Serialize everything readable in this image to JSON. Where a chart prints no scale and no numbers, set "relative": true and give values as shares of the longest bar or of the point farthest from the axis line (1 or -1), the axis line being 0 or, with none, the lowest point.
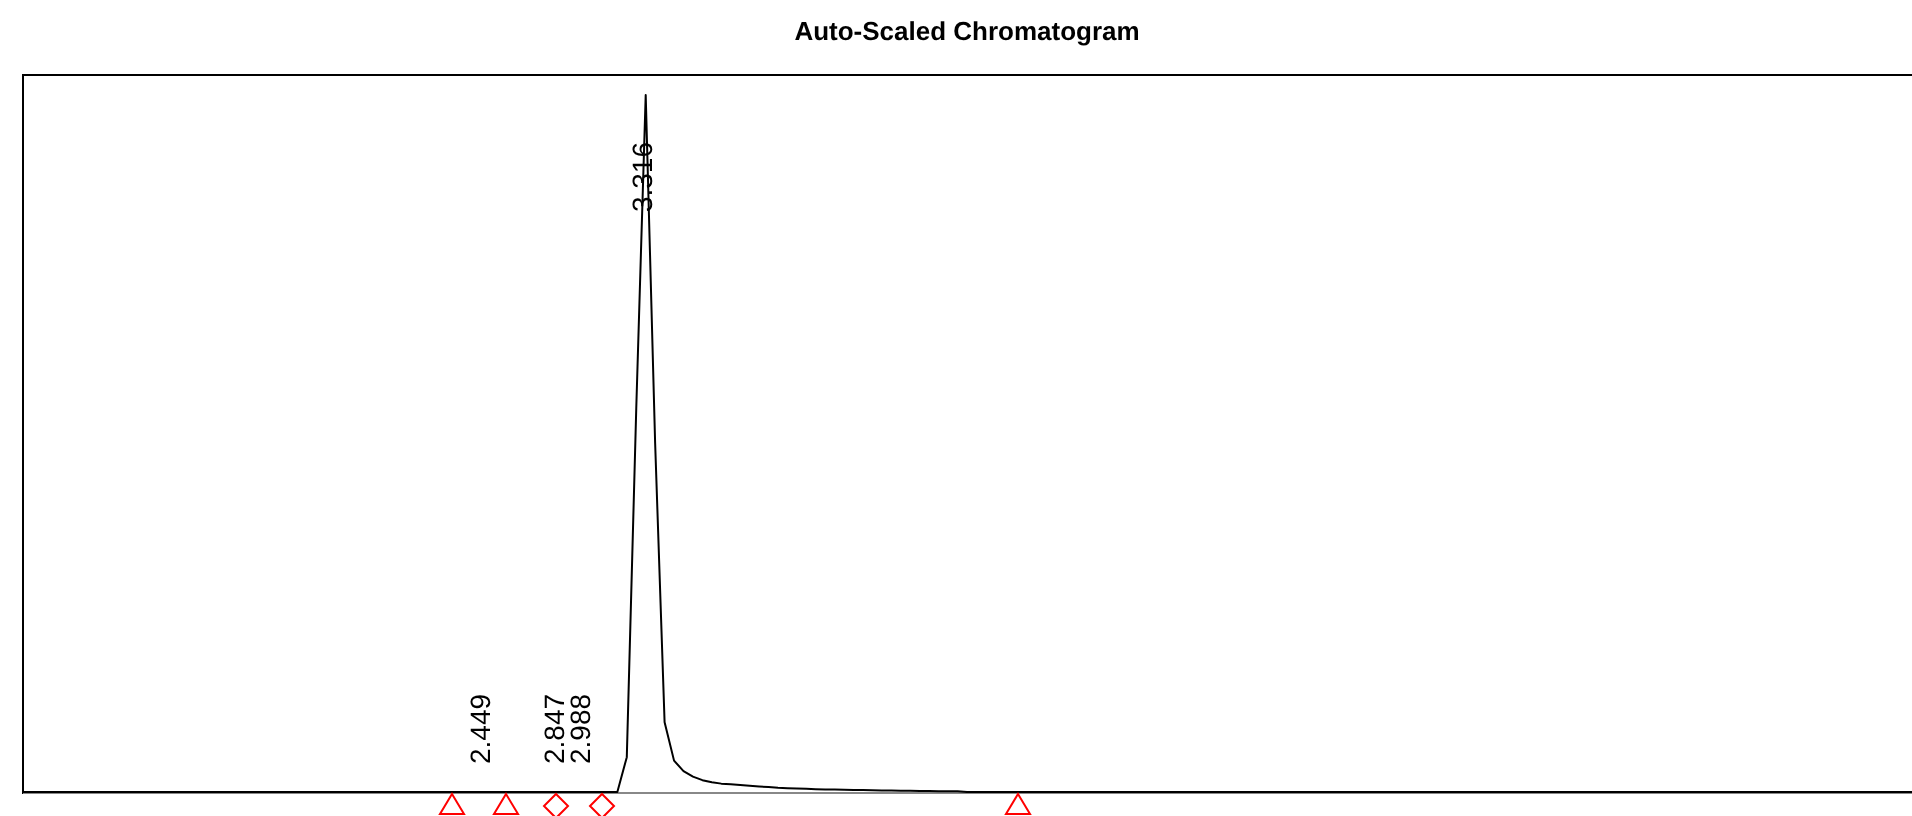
{
  "chart_data": {
    "type": "line",
    "title": "Auto-Scaled Chromatogram",
    "relative": true,
    "categories": [
      null,
      null,
      null,
      null,
      null,
      null,
      null,
      null,
      null,
      null,
      null,
      null,
      null,
      null,
      null,
      null,
      null,
      null,
      null,
      null,
      null,
      null,
      null,
      null,
      null,
      null,
      null,
      null,
      null,
      null,
      null,
      null,
      null,
      null,
      null,
      null,
      null,
      null,
      null,
      null,
      null,
      null,
      null,
      null,
      null,
      null,
      null,
      null,
      null,
      null,
      null,
      null,
      null,
      null,
      null,
      null,
      null,
      null,
      null,
      null,
      null,
      null,
      null,
      null,
      null,
      null,
      null,
      null,
      null,
      null,
      null,
      null,
      null,
      null,
      null,
      null,
      null,
      null,
      null,
      null,
      null,
      null,
      null,
      null,
      null,
      null,
      null,
      null,
      null,
      null,
      null,
      null,
      null,
      null,
      null,
      null,
      null,
      null,
      null,
      null,
      null,
      null,
      null,
      null,
      null,
      null,
      null,
      null,
      null,
      null,
      null,
      null,
      null,
      null,
      null,
      null,
      null,
      null,
      null,
      null,
      null,
      null,
      null,
      null,
      null,
      null,
      null,
      null,
      null,
      null,
      null,
      null,
      null,
      null,
      null,
      null,
      null,
      null,
      null,
      null,
      null,
      null,
      null,
      null,
      null,
      null,
      null,
      null,
      null,
      null,
      null,
      null,
      null,
      null,
      null,
      null,
      null,
      null,
      null,
      null,
      null,
      null,
      null,
      null,
      null,
      null,
      null,
      null,
      null,
      null,
      null,
      null,
      null,
      null,
      null,
      null,
      null,
      null,
      null,
      null,
      null,
      null,
      null,
      null,
      null,
      null,
      null,
      null,
      null,
      null,
      null,
      null,
      null,
      null,
      null,
      null,
      null,
      null,
      null,
      null,
      null
    ],
    "series": [
      {
        "color": "#000000",
        "values": [
          0,
          0,
          0,
          0,
          0,
          0,
          0,
          0,
          0,
          0,
          0,
          0,
          0,
          0,
          0,
          0,
          0,
          0,
          0,
          0,
          0,
          0,
          0,
          0,
          0,
          0,
          0,
          0,
          0,
          0,
          0,
          0,
          0,
          0,
          0,
          0,
          0,
          0,
          0,
          0,
          0,
          0,
          0,
          0,
          0,
          0,
          0,
          0,
          0,
          0,
          0,
          0,
          0,
          0,
          0,
          0,
          0,
          0,
          0,
          0,
          0,
          0,
          0,
          0,
          0.05,
          0.55,
          1,
          0.5,
          0.1,
          0.045,
          0.03,
          0.022,
          0.017,
          0.014,
          0.012,
          0.011,
          0.01,
          0.009,
          0.008,
          0.007,
          0.006,
          0.0055,
          0.005,
          0.0045,
          0.004,
          0.0037,
          0.0035,
          0.0032,
          0.003,
          0.0027,
          0.0025,
          0.0022,
          0.002,
          0.0019,
          0.0018,
          0.0016,
          0.0015,
          0.0012,
          0.001,
          0.001,
          0,
          0,
          0,
          0,
          0,
          0,
          0,
          0,
          0,
          0,
          0,
          0,
          0,
          0,
          0,
          0,
          0,
          0,
          0,
          0,
          0,
          0,
          0,
          0,
          0,
          0,
          0,
          0,
          0,
          0,
          0,
          0,
          0,
          0,
          0,
          0,
          0,
          0,
          0,
          0,
          0,
          0,
          0,
          0,
          0,
          0,
          0,
          0,
          0,
          0,
          0,
          0,
          0,
          0,
          0,
          0,
          0,
          0,
          0,
          0,
          0,
          0,
          0,
          0,
          0,
          0,
          0,
          0,
          0,
          0,
          0,
          0,
          0,
          0,
          0,
          0,
          0,
          0,
          0,
          0,
          0,
          0,
          0,
          0,
          0,
          0,
          0,
          0,
          0,
          0,
          0,
          0,
          0,
          0,
          0,
          0,
          0,
          0,
          0,
          0,
          0
        ]
      }
    ],
    "annotations": [
      "2.449",
      "2.847",
      "2.988",
      "3.316"
    ]
  }
}
